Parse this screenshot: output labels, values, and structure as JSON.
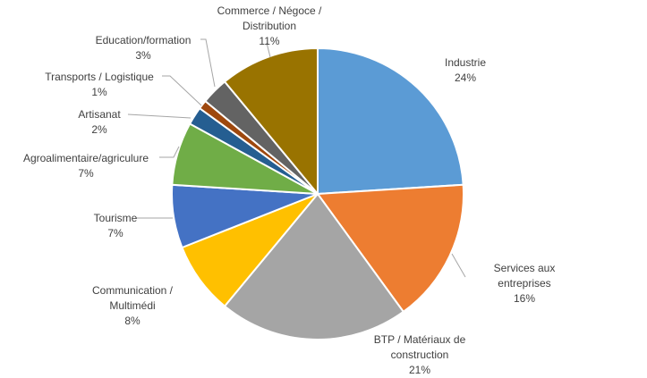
{
  "chart_data": {
    "type": "pie",
    "title": "",
    "start_angle_deg": 0,
    "direction": "clockwise",
    "slices": [
      {
        "label": [
          "Industrie"
        ],
        "value": 24,
        "pct_label": "24%",
        "color": "#5B9BD5"
      },
      {
        "label": [
          "Services aux",
          "entreprises"
        ],
        "value": 16,
        "pct_label": "16%",
        "color": "#ED7D31"
      },
      {
        "label": [
          "BTP / Matériaux de",
          "construction"
        ],
        "value": 21,
        "pct_label": "21%",
        "color": "#A5A5A5"
      },
      {
        "label": [
          "Communication /",
          "Multimédi"
        ],
        "value": 8,
        "pct_label": "8%",
        "color": "#FFC000"
      },
      {
        "label": [
          "Tourisme"
        ],
        "value": 7,
        "pct_label": "7%",
        "color": "#4472C4"
      },
      {
        "label": [
          "Agroalimentaire/agriculure"
        ],
        "value": 7,
        "pct_label": "7%",
        "color": "#70AD47"
      },
      {
        "label": [
          "Artisanat"
        ],
        "value": 2,
        "pct_label": "2%",
        "color": "#255E91"
      },
      {
        "label": [
          "Transports / Logistique"
        ],
        "value": 1,
        "pct_label": "1%",
        "color": "#9E480E"
      },
      {
        "label": [
          "Education/formation"
        ],
        "value": 3,
        "pct_label": "3%",
        "color": "#636363"
      },
      {
        "label": [
          "Commerce / Négoce /",
          "Distribution"
        ],
        "value": 11,
        "pct_label": "11%",
        "color": "#997300"
      }
    ]
  }
}
